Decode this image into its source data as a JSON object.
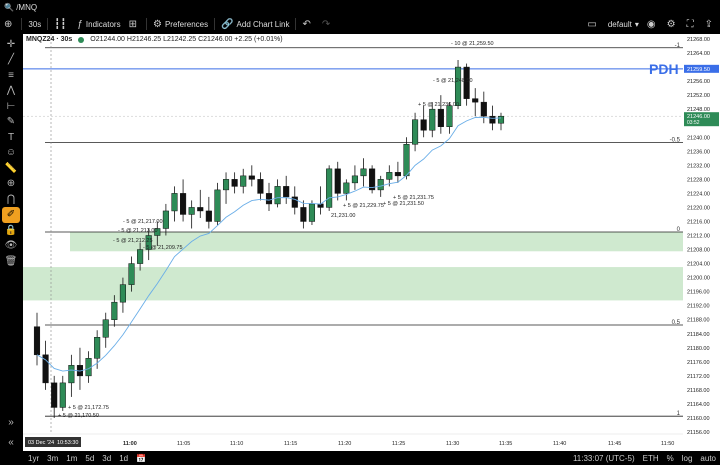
{
  "app": {
    "symbol": "/MNQ"
  },
  "toolbar": {
    "interval": "30s",
    "indicators": "Indicators",
    "preferences": "Preferences",
    "chart_link": "Add Chart Link",
    "layout": "default"
  },
  "legend": {
    "symbol": "MNQZ24 · 30s",
    "ohlc": "O21244.00 H21246.25 L21242.25 C21246.00 +2.25 (+0.01%)"
  },
  "overlay": {
    "pdh": "PDH"
  },
  "price_axis": [
    "21268.00",
    "21264.00",
    "21260.00",
    "21256.00",
    "21252.00",
    "21248.00",
    "21244.00",
    "21240.00",
    "21236.00",
    "21232.00",
    "21228.00",
    "21224.00",
    "21220.00",
    "21216.00",
    "21212.00",
    "21208.00",
    "21204.00",
    "21200.00",
    "21196.00",
    "21192.00",
    "21188.00",
    "21184.00",
    "21180.00",
    "21176.00",
    "21172.00",
    "21168.00",
    "21164.00",
    "21160.00",
    "21156.00"
  ],
  "price_tags": {
    "pdh_value": "21259.50",
    "last_value": "21246.00",
    "last_sub": "03:52"
  },
  "level_labels": [
    "-1",
    "-0.5",
    "0",
    "0.5",
    "1"
  ],
  "time_axis": [
    "03 Dec '24",
    "10:53:30",
    "11:00",
    "11:05",
    "11:10",
    "11:15",
    "11:20",
    "11:25",
    "11:30",
    "11:35",
    "11:40",
    "11:45",
    "11:50"
  ],
  "annotations": [
    "- 10 @ 21,259.50",
    "- 5 @ 21,248.50",
    "+ 5 @ 21,236.00",
    "- 5 @ 21,217.00",
    "- 5 @ 21,213.00",
    "- 5 @ 21,212.25",
    "- 5 @ 21,209.75",
    "+ 5 @ 21,231.75",
    "+ 5 @ 21,229.75",
    "+ 5 @ 21,231.50",
    "21,231.00",
    "+ 5 @ 21,172.75",
    "+ 5 @ 21,170.50"
  ],
  "bottom": {
    "ranges": [
      "1yr",
      "3m",
      "1m",
      "5d",
      "3d",
      "1d"
    ],
    "clock": "11:33:07 (UTC-5)",
    "session": "ETH",
    "pct": "%",
    "log": "log",
    "auto": "auto"
  },
  "colors": {
    "up": "#2e8b57",
    "down": "#111111",
    "pdh": "#3a6ee8",
    "zone": "#cfe9cf",
    "ema": "#6aaee8"
  }
}
